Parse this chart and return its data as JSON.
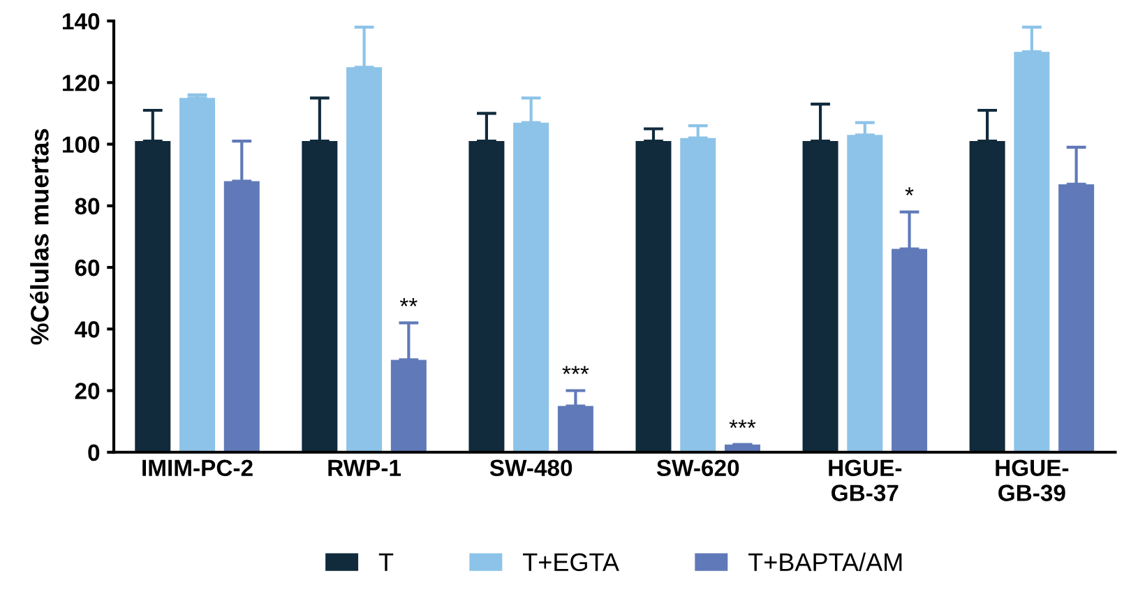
{
  "chart_data": {
    "type": "bar",
    "ylabel": "%Células muertas",
    "categories": [
      "IMIM-PC-2",
      "RWP-1",
      "SW-480",
      "SW-620",
      "HGUE-\nGB-37",
      "HGUE-\nGB-39"
    ],
    "series": [
      {
        "name": "T",
        "color": "#112b3c",
        "values": [
          101,
          101,
          101,
          101,
          101,
          101
        ],
        "errors": [
          [
            101,
            111
          ],
          [
            101,
            115
          ],
          [
            101,
            110
          ],
          [
            101,
            105
          ],
          [
            101,
            113
          ],
          [
            101,
            111
          ]
        ]
      },
      {
        "name": "T+EGTA",
        "color": "#8dc3e8",
        "values": [
          115,
          125,
          107,
          102,
          103,
          130
        ],
        "errors": [
          [
            115,
            116
          ],
          [
            125,
            138
          ],
          [
            107,
            115
          ],
          [
            102,
            106
          ],
          [
            103,
            107
          ],
          [
            130,
            138
          ]
        ]
      },
      {
        "name": "T+BAPTA/AM",
        "color": "#6079b8",
        "values": [
          88,
          30,
          15,
          2.5,
          66,
          87
        ],
        "value_labels": [
          null,
          "**",
          "***",
          "***",
          "*",
          null
        ],
        "errors": [
          [
            88,
            101
          ],
          [
            30,
            42
          ],
          [
            15,
            20
          ],
          [
            2.5,
            2.5
          ],
          [
            66,
            78
          ],
          [
            87,
            99
          ]
        ]
      }
    ],
    "ylim": [
      0,
      140
    ],
    "yticks": [
      0,
      20,
      40,
      60,
      80,
      100,
      120,
      140
    ],
    "grid": false,
    "legend": "bottom"
  }
}
